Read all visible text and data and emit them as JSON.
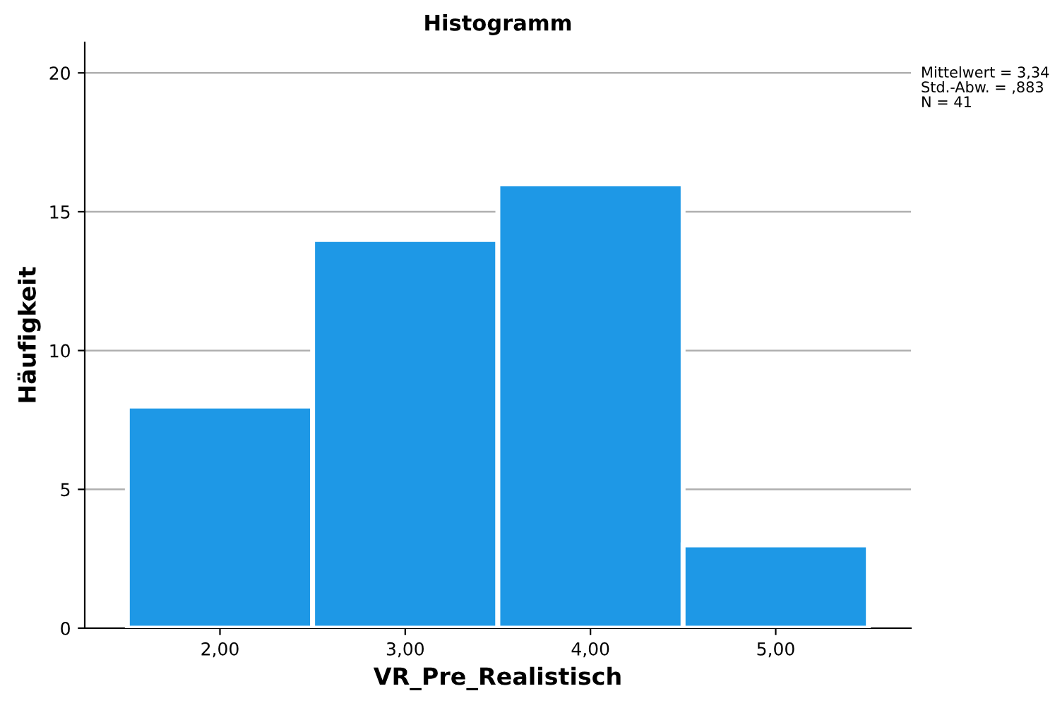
{
  "chart_data": {
    "type": "histogram",
    "title": "Histogramm",
    "xlabel": "VR_Pre_Realistisch",
    "ylabel": "Häufigkeit",
    "bins": [
      1.5,
      2.5,
      3.5,
      4.5,
      5.5
    ],
    "values": [
      8,
      14,
      16,
      3
    ],
    "color": "#1e98e6",
    "xlim": [
      1.27,
      5.73
    ],
    "xticks": [
      {
        "value": 2,
        "label": "2,00"
      },
      {
        "value": 3,
        "label": "3,00"
      },
      {
        "value": 4,
        "label": "4,00"
      },
      {
        "value": 5,
        "label": "5,00"
      }
    ],
    "ylim": [
      0,
      21.1
    ],
    "yticks": [
      0,
      5,
      10,
      15,
      20
    ],
    "grid": "y",
    "annotations": [
      "Mittelwert = 3,34",
      "Std.-Abw. = ,883",
      "N = 41"
    ]
  }
}
